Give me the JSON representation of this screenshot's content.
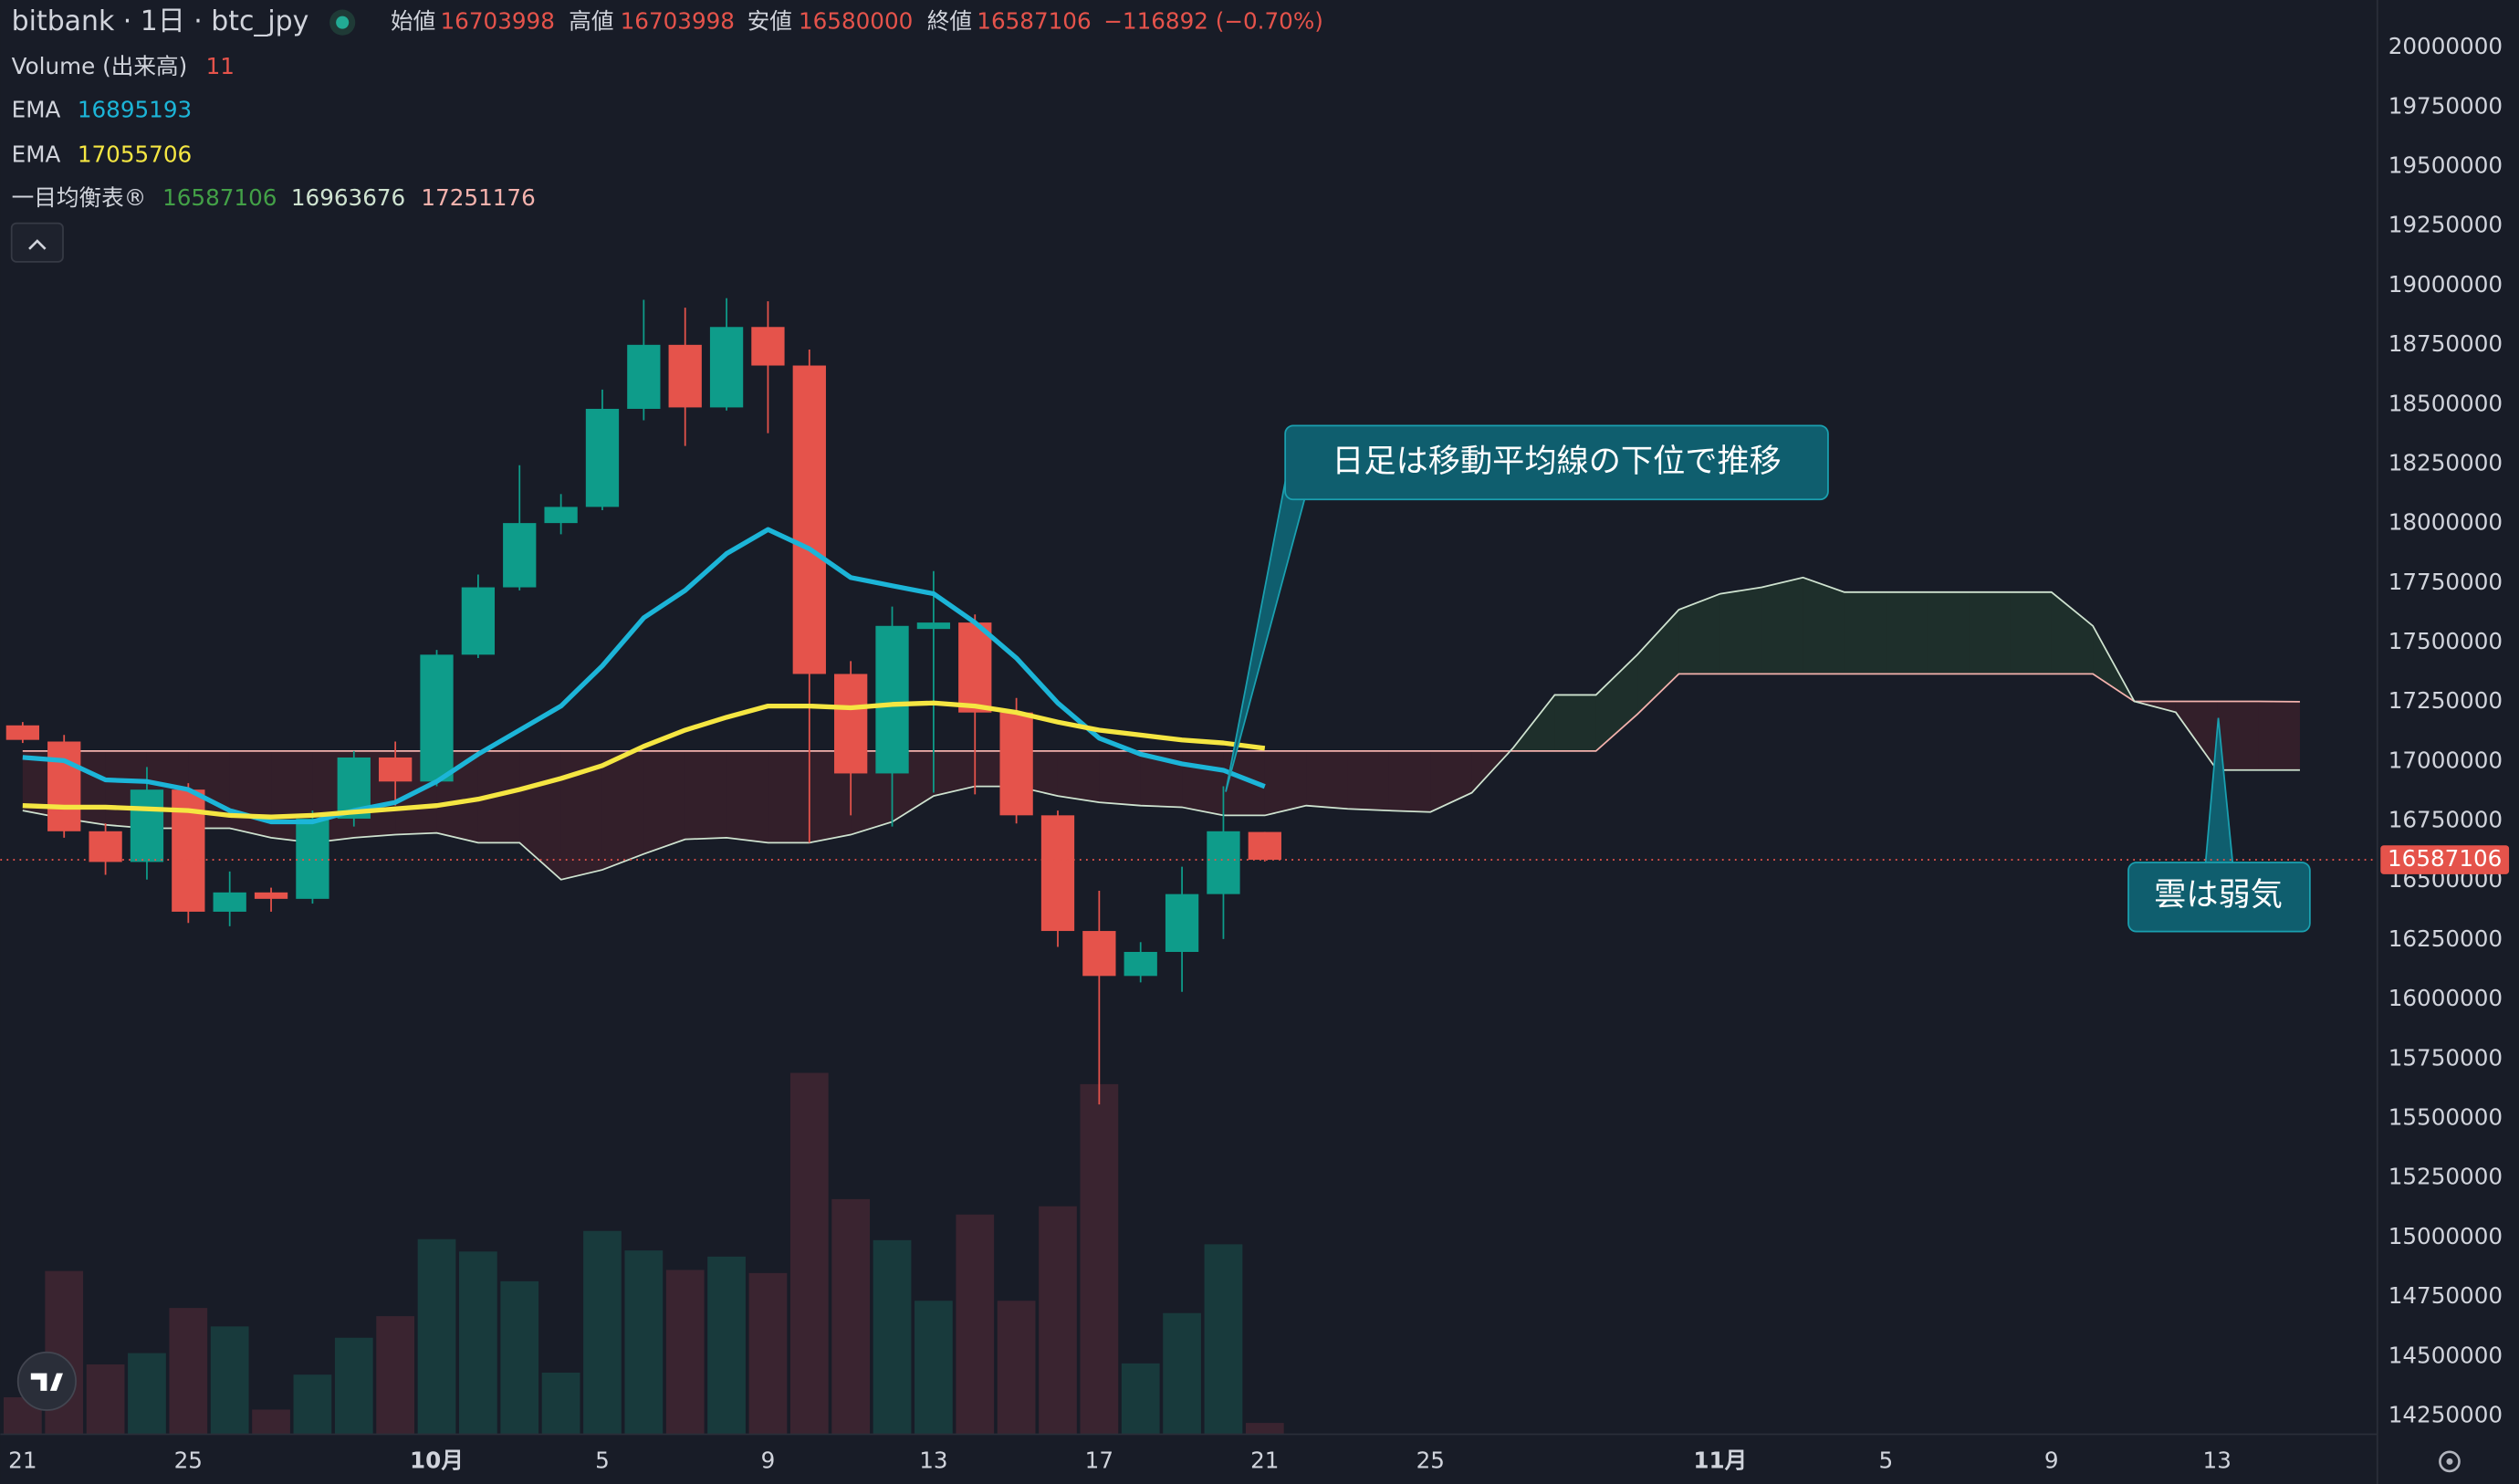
{
  "chart_data": {
    "type": "candlestick",
    "title": "bitbank · 1日 · btc_jpy",
    "ohlc_labels": [
      "始値",
      "高値",
      "安値",
      "終値"
    ],
    "change_label": "−116892 (−0.70%)",
    "categories": [
      "21",
      null,
      null,
      null,
      "25",
      null,
      null,
      null,
      null,
      null,
      "10月",
      null,
      null,
      null,
      "5",
      null,
      null,
      null,
      "9",
      null,
      null,
      null,
      "13",
      null,
      null,
      null,
      "17",
      null,
      null,
      null,
      "21",
      null,
      null,
      null,
      "25",
      null,
      null,
      null,
      null,
      null,
      null,
      "11月",
      null,
      null,
      null,
      "5",
      null,
      null,
      null,
      "9",
      null,
      null,
      null,
      "13",
      null,
      null
    ],
    "xlim": [
      -0.54,
      56.87
    ],
    "ylim": [
      14170000,
      20200000
    ],
    "yticks": [
      14250000,
      14500000,
      14750000,
      15000000,
      15250000,
      15500000,
      15750000,
      16000000,
      16250000,
      16500000,
      16750000,
      17000000,
      17250000,
      17500000,
      17750000,
      18000000,
      18250000,
      18500000,
      18750000,
      19000000,
      19250000,
      19500000,
      19750000,
      20000000
    ],
    "up_color": "#0e9c8a",
    "down_color": "#e5534b",
    "open": [
      17152000,
      17084000,
      16707000,
      16578000,
      16882000,
      16369000,
      16450000,
      16423000,
      16760000,
      17017000,
      16916000,
      17449000,
      17732000,
      18002000,
      18070000,
      18482000,
      18751000,
      18488000,
      18826000,
      18664000,
      17368000,
      16950000,
      17557000,
      17584000,
      17206000,
      16774000,
      16288000,
      16099000,
      16200000,
      16443000,
      16703998,
      null,
      null,
      null,
      null,
      null,
      null,
      null,
      null,
      null,
      null,
      null,
      null,
      null,
      null,
      null,
      null,
      null,
      null,
      null,
      null,
      null,
      null,
      null,
      null,
      null
    ],
    "high": [
      17166000,
      17112000,
      16740000,
      16977000,
      16909000,
      16538000,
      16470000,
      16794000,
      17044000,
      17084000,
      17469000,
      17786000,
      18245000,
      18124000,
      18563000,
      18940000,
      18907000,
      18947000,
      18934000,
      18731000,
      17422000,
      17651000,
      17800000,
      17618000,
      17267000,
      16794000,
      16457000,
      16241000,
      16558000,
      16896000,
      16703998,
      null,
      null,
      null,
      null,
      null,
      null,
      null,
      null,
      null,
      null,
      null,
      null,
      null,
      null,
      null,
      null,
      null,
      null,
      null,
      null,
      null,
      null,
      null,
      null,
      null
    ],
    "low": [
      17078000,
      16680000,
      16524000,
      16504000,
      16322000,
      16308000,
      16369000,
      16403000,
      16727000,
      16815000,
      16896000,
      17435000,
      17719000,
      17955000,
      18056000,
      18434000,
      18326000,
      18475000,
      18380000,
      16659000,
      16774000,
      16727000,
      16869000,
      16862000,
      16740000,
      16221000,
      15559000,
      16072000,
      16032000,
      16254000,
      16580000,
      null,
      null,
      null,
      null,
      null,
      null,
      null,
      null,
      null,
      null,
      null,
      null,
      null,
      null,
      null,
      null,
      null,
      null,
      null,
      null,
      null,
      null,
      null,
      null,
      null
    ],
    "close": [
      17091000,
      16707000,
      16578000,
      16882000,
      16369000,
      16450000,
      16423000,
      16760000,
      17017000,
      16916000,
      17449000,
      17732000,
      18002000,
      18070000,
      18482000,
      18751000,
      18488000,
      18826000,
      18664000,
      17368000,
      16950000,
      17570000,
      17584000,
      17206000,
      16774000,
      16288000,
      16099000,
      16200000,
      16443000,
      16707000,
      16587106,
      null,
      null,
      null,
      null,
      null,
      null,
      null,
      null,
      null,
      null,
      null,
      null,
      null,
      null,
      null,
      null,
      null,
      null,
      null,
      null,
      null,
      null,
      null,
      null,
      null
    ],
    "volume": {
      "name": "Volume (出来高)",
      "up_color": "#183a3c",
      "down_color": "#3a2430",
      "values": [
        36,
        159,
        68,
        79,
        123,
        105,
        24,
        58,
        94,
        115,
        190,
        178,
        149,
        60,
        198,
        179,
        160,
        173,
        157,
        352,
        229,
        189,
        130,
        214,
        130,
        222,
        341,
        69,
        118,
        185,
        11,
        null,
        null,
        null,
        null,
        null,
        null,
        null,
        null,
        null,
        null,
        null,
        null,
        null,
        null,
        null,
        null,
        null,
        null,
        null,
        null,
        null,
        null,
        null,
        null,
        null
      ]
    },
    "series": [
      {
        "name": "EMA",
        "color": "#1cb5d8",
        "values": [
          17017000,
          17004000,
          16923000,
          16916000,
          16882000,
          16794000,
          16747000,
          16747000,
          16794000,
          16828000,
          16916000,
          17031000,
          17132000,
          17233000,
          17402000,
          17604000,
          17719000,
          17874000,
          17975000,
          17894000,
          17773000,
          17739000,
          17705000,
          17584000,
          17435000,
          17246000,
          17098000,
          17031000,
          16990000,
          16963000,
          16895193,
          null,
          null,
          null,
          null,
          null,
          null,
          null,
          null,
          null,
          null,
          null,
          null,
          null,
          null,
          null,
          null,
          null,
          null,
          null,
          null,
          null,
          null,
          null,
          null,
          null
        ]
      },
      {
        "name": "EMA",
        "color": "#f5e642",
        "values": [
          16815000,
          16808000,
          16808000,
          16801000,
          16794000,
          16774000,
          16767000,
          16774000,
          16788000,
          16801000,
          16815000,
          16842000,
          16882000,
          16929000,
          16983000,
          17064000,
          17132000,
          17186000,
          17233000,
          17233000,
          17226000,
          17240000,
          17246000,
          17233000,
          17206000,
          17166000,
          17132000,
          17111000,
          17091000,
          17078000,
          17055706,
          null,
          null,
          null,
          null,
          null,
          null,
          null,
          null,
          null,
          null,
          null,
          null,
          null,
          null,
          null,
          null,
          null,
          null,
          null,
          null,
          null,
          null,
          null,
          null,
          null
        ]
      }
    ],
    "ichimoku": {
      "name": "一目均衡表®",
      "cloud_up_color": "rgba(76,175,80,0.13)",
      "cloud_down_color": "rgba(242,54,69,0.13)",
      "span_a": {
        "color": "#cfe3d0",
        "values": [
          16794000,
          16761000,
          16734000,
          16720000,
          16720000,
          16720000,
          16680000,
          16659000,
          16680000,
          16693000,
          16700000,
          16659000,
          16659000,
          16504000,
          16545000,
          16612000,
          16673000,
          16680000,
          16659000,
          16659000,
          16693000,
          16747000,
          16855000,
          16896000,
          16896000,
          16855000,
          16828000,
          16815000,
          16808000,
          16774000,
          16774000,
          16815000,
          16801000,
          16794000,
          16788000,
          16869000,
          17058000,
          17280000,
          17280000,
          17449000,
          17638000,
          17705000,
          17732000,
          17773000,
          17712000,
          17712000,
          17712000,
          17712000,
          17712000,
          17712000,
          17570000,
          17253000,
          17207000,
          16964000,
          16964000,
          16963676
        ]
      },
      "span_b": {
        "color": "#f4b2ad",
        "values": [
          17044000,
          17044000,
          17044000,
          17044000,
          17044000,
          17044000,
          17044000,
          17044000,
          17044000,
          17044000,
          17044000,
          17044000,
          17044000,
          17044000,
          17044000,
          17044000,
          17044000,
          17044000,
          17044000,
          17044000,
          17044000,
          17044000,
          17044000,
          17044000,
          17044000,
          17044000,
          17044000,
          17044000,
          17044000,
          17044000,
          17044000,
          17044000,
          17044000,
          17044000,
          17044000,
          17044000,
          17044000,
          17044000,
          17044000,
          17199000,
          17368000,
          17368000,
          17368000,
          17368000,
          17368000,
          17368000,
          17368000,
          17368000,
          17368000,
          17368000,
          17368000,
          17253000,
          17253000,
          17253000,
          17253000,
          17251176
        ]
      }
    },
    "annotations": [
      "日足は移動平均線の下位で推移",
      "雲は弱気"
    ]
  }
}
